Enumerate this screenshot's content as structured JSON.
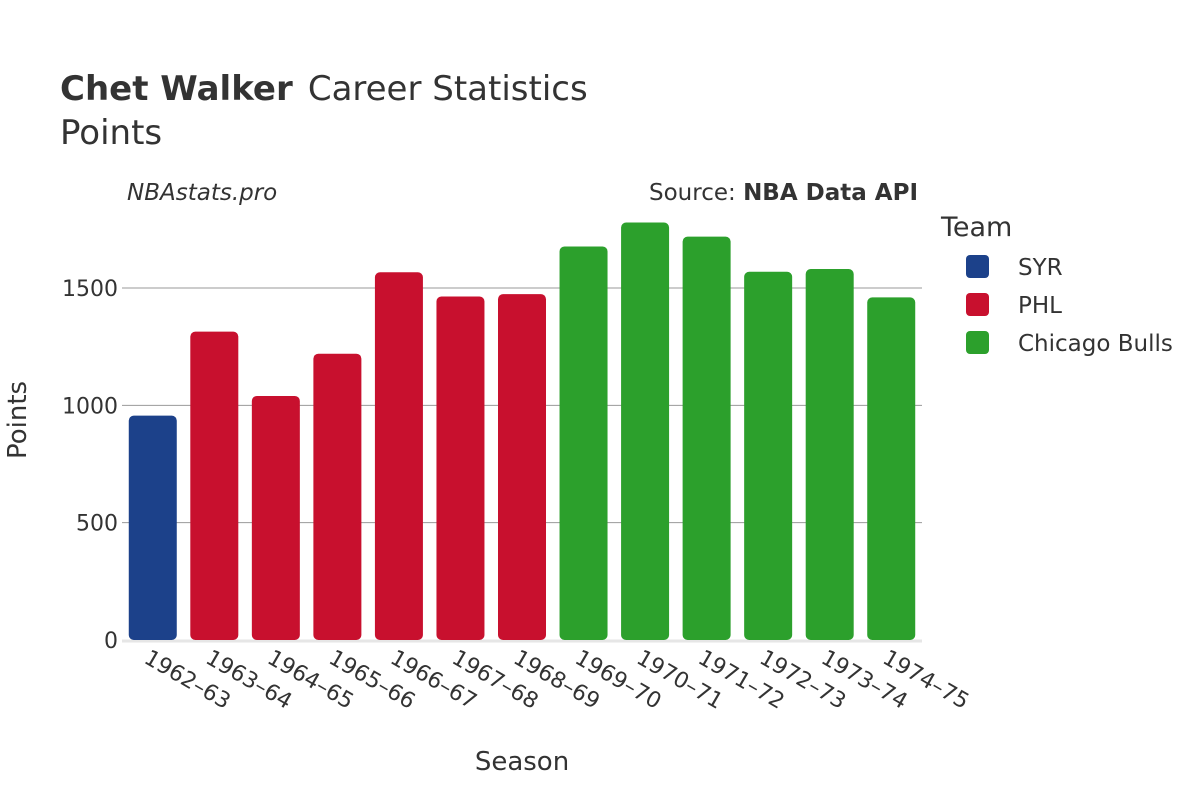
{
  "chart_data": {
    "type": "bar",
    "title_bold": "Chet Walker",
    "title_rest": "Career Statistics",
    "subtitle": "Points",
    "watermark": "NBAstats.pro",
    "source_prefix": "Source: ",
    "source_name": "NBA Data API",
    "xlabel": "Season",
    "ylabel": "Points",
    "ylim": [
      0,
      1800
    ],
    "yticks": [
      0,
      500,
      1000,
      1500
    ],
    "grid": true,
    "legend": {
      "title": "Team",
      "position": "right",
      "entries": [
        {
          "name": "SYR",
          "color": "#1c418a"
        },
        {
          "name": "PHL",
          "color": "#c8102e"
        },
        {
          "name": "Chicago Bulls",
          "color": "#2ca02c"
        }
      ]
    },
    "categories": [
      "1962–63",
      "1963–64",
      "1964–65",
      "1965–66",
      "1966–67",
      "1967–68",
      "1968–69",
      "1969–70",
      "1970–71",
      "1971–72",
      "1972–73",
      "1973–74",
      "1974–75"
    ],
    "values": [
      956,
      1314,
      1040,
      1220,
      1567,
      1464,
      1474,
      1677,
      1779,
      1719,
      1569,
      1581,
      1460
    ],
    "teams": [
      "SYR",
      "PHL",
      "PHL",
      "PHL",
      "PHL",
      "PHL",
      "PHL",
      "Chicago Bulls",
      "Chicago Bulls",
      "Chicago Bulls",
      "Chicago Bulls",
      "Chicago Bulls",
      "Chicago Bulls"
    ]
  }
}
